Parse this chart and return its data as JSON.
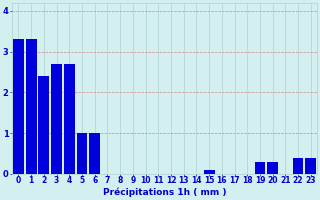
{
  "values": [
    3.3,
    3.3,
    2.4,
    2.7,
    2.7,
    1.0,
    1.0,
    0.0,
    0.0,
    0.0,
    0.0,
    0.0,
    0.0,
    0.0,
    0.0,
    0.1,
    0.0,
    0.0,
    0.0,
    0.3,
    0.3,
    0.0,
    0.4,
    0.4
  ],
  "bar_color": "#0000dd",
  "bg_color": "#d4efef",
  "grid_color": "#b0d0d0",
  "axis_color": "#0000aa",
  "text_color": "#0000cc",
  "xlabel": "Précipitations 1h ( mm )",
  "ylim": [
    0,
    4.2
  ],
  "xlim": [
    -0.5,
    23.5
  ],
  "yticks": [
    0,
    1,
    2,
    3,
    4
  ],
  "xtick_labels": [
    "0",
    "1",
    "2",
    "3",
    "4",
    "5",
    "6",
    "7",
    "8",
    "9",
    "10",
    "11",
    "12",
    "13",
    "14",
    "15",
    "16",
    "17",
    "18",
    "19",
    "20",
    "21",
    "22",
    "23"
  ],
  "label_fontsize": 6.5,
  "tick_fontsize": 5.5
}
